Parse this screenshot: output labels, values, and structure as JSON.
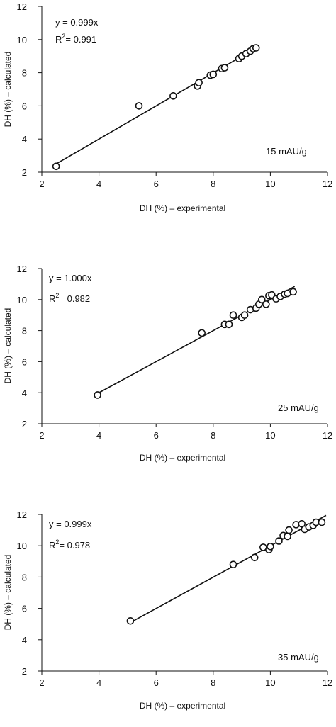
{
  "chart_data": [
    {
      "type": "scatter",
      "xlabel": "DH (%) – experimental",
      "ylabel": "DH (%) – calculated",
      "xlim": [
        2,
        12
      ],
      "ylim": [
        2,
        12
      ],
      "x_ticks": [
        "2",
        "4",
        "6",
        "8",
        "10",
        "12"
      ],
      "y_ticks": [
        "2",
        "4",
        "6",
        "8",
        "10",
        "12"
      ],
      "equation": "y = 0.999x",
      "r2_prefix": "R",
      "r2_exp": "2",
      "r2_value": "= 0.991",
      "annotation": "15 mAU/g",
      "fit_line": {
        "slope": 0.999,
        "x_range": [
          2.5,
          9.55
        ]
      },
      "points": [
        {
          "x": 2.5,
          "y": 2.35
        },
        {
          "x": 5.4,
          "y": 6.0
        },
        {
          "x": 6.6,
          "y": 6.6
        },
        {
          "x": 7.45,
          "y": 7.2
        },
        {
          "x": 7.5,
          "y": 7.4
        },
        {
          "x": 7.9,
          "y": 7.85
        },
        {
          "x": 8.0,
          "y": 7.9
        },
        {
          "x": 8.3,
          "y": 8.25
        },
        {
          "x": 8.4,
          "y": 8.3
        },
        {
          "x": 8.9,
          "y": 8.85
        },
        {
          "x": 9.0,
          "y": 9.0
        },
        {
          "x": 9.15,
          "y": 9.15
        },
        {
          "x": 9.3,
          "y": 9.3
        },
        {
          "x": 9.4,
          "y": 9.45
        },
        {
          "x": 9.5,
          "y": 9.5
        }
      ]
    },
    {
      "type": "scatter",
      "xlabel": "DH (%) – experimental",
      "ylabel": "DH (%) – calculated",
      "xlim": [
        2,
        12
      ],
      "ylim": [
        2,
        12
      ],
      "x_ticks": [
        "2",
        "4",
        "6",
        "8",
        "10",
        "12"
      ],
      "y_ticks": [
        "2",
        "4",
        "6",
        "8",
        "10",
        "12"
      ],
      "equation": "y = 1.000x",
      "r2_prefix": "R",
      "r2_exp": "2",
      "r2_value": "= 0.982",
      "annotation": "25 mAU/g",
      "fit_line": {
        "slope": 1.0,
        "x_range": [
          3.9,
          10.85
        ]
      },
      "points": [
        {
          "x": 3.95,
          "y": 3.85
        },
        {
          "x": 7.6,
          "y": 7.85
        },
        {
          "x": 8.4,
          "y": 8.4
        },
        {
          "x": 8.55,
          "y": 8.4
        },
        {
          "x": 8.7,
          "y": 9.0
        },
        {
          "x": 9.0,
          "y": 8.85
        },
        {
          "x": 9.1,
          "y": 9.0
        },
        {
          "x": 9.3,
          "y": 9.35
        },
        {
          "x": 9.5,
          "y": 9.45
        },
        {
          "x": 9.6,
          "y": 9.7
        },
        {
          "x": 9.7,
          "y": 10.0
        },
        {
          "x": 9.85,
          "y": 9.7
        },
        {
          "x": 9.95,
          "y": 10.25
        },
        {
          "x": 10.05,
          "y": 10.3
        },
        {
          "x": 10.2,
          "y": 10.05
        },
        {
          "x": 10.35,
          "y": 10.2
        },
        {
          "x": 10.5,
          "y": 10.35
        },
        {
          "x": 10.6,
          "y": 10.4
        },
        {
          "x": 10.8,
          "y": 10.5
        }
      ]
    },
    {
      "type": "scatter",
      "xlabel": "DH (%) – experimental",
      "ylabel": "DH (%) – calculated",
      "xlim": [
        2,
        12
      ],
      "ylim": [
        2,
        12
      ],
      "x_ticks": [
        "2",
        "4",
        "6",
        "8",
        "10",
        "12"
      ],
      "y_ticks": [
        "2",
        "4",
        "6",
        "8",
        "10",
        "12"
      ],
      "equation": "y = 0.999x",
      "r2_prefix": "R",
      "r2_exp": "2",
      "r2_value": "= 0.978",
      "annotation": "35 mAU/g",
      "fit_line": {
        "slope": 0.999,
        "x_range": [
          5.1,
          11.95
        ]
      },
      "points": [
        {
          "x": 5.1,
          "y": 5.2
        },
        {
          "x": 8.7,
          "y": 8.8
        },
        {
          "x": 9.45,
          "y": 9.25
        },
        {
          "x": 9.75,
          "y": 9.9
        },
        {
          "x": 9.95,
          "y": 9.75
        },
        {
          "x": 10.0,
          "y": 9.95
        },
        {
          "x": 10.3,
          "y": 10.3
        },
        {
          "x": 10.45,
          "y": 10.65
        },
        {
          "x": 10.6,
          "y": 10.6
        },
        {
          "x": 10.65,
          "y": 11.0
        },
        {
          "x": 10.9,
          "y": 11.35
        },
        {
          "x": 11.1,
          "y": 11.4
        },
        {
          "x": 11.2,
          "y": 11.05
        },
        {
          "x": 11.35,
          "y": 11.2
        },
        {
          "x": 11.5,
          "y": 11.3
        },
        {
          "x": 11.6,
          "y": 11.5
        },
        {
          "x": 11.8,
          "y": 11.5
        }
      ]
    }
  ]
}
